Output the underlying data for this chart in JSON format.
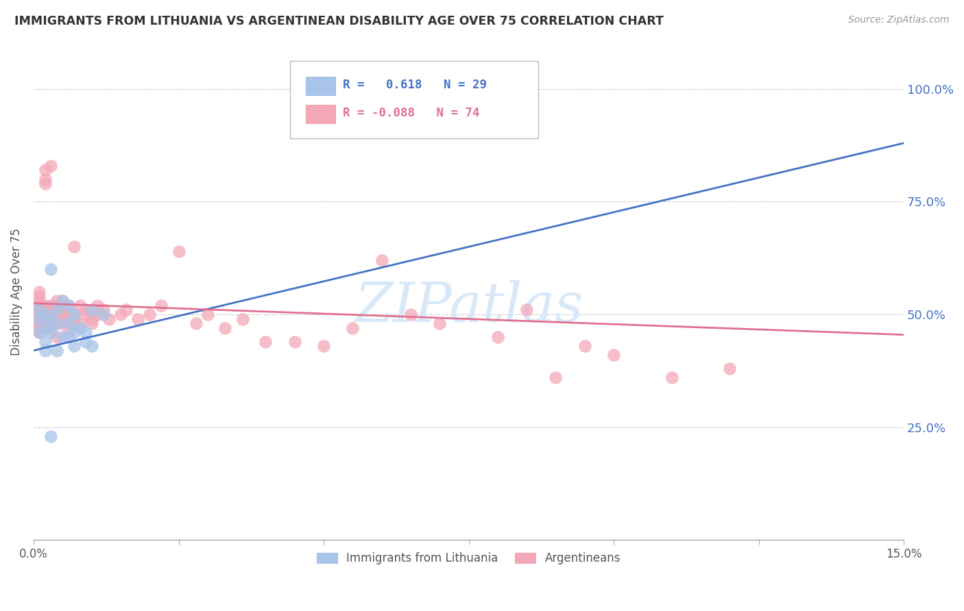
{
  "title": "IMMIGRANTS FROM LITHUANIA VS ARGENTINEAN DISABILITY AGE OVER 75 CORRELATION CHART",
  "source": "Source: ZipAtlas.com",
  "ylabel": "Disability Age Over 75",
  "x_min": 0.0,
  "x_max": 0.15,
  "y_min": 0.0,
  "y_max": 1.1,
  "x_ticks": [
    0.0,
    0.025,
    0.05,
    0.075,
    0.1,
    0.125,
    0.15
  ],
  "x_tick_labels": [
    "0.0%",
    "",
    "",
    "",
    "",
    "",
    "15.0%"
  ],
  "y_ticks": [
    0.0,
    0.25,
    0.5,
    0.75,
    1.0
  ],
  "right_y_ticks": [
    0.25,
    0.5,
    0.75,
    1.0
  ],
  "right_y_tick_labels": [
    "25.0%",
    "50.0%",
    "75.0%",
    "100.0%"
  ],
  "trend_color1": "#4472c4",
  "trend_color2": "#e07090",
  "scatter_color1": "#a8c4e8",
  "scatter_color2": "#f4a8b8",
  "watermark": "ZIPatlas",
  "watermark_color": "#d8e8f8",
  "background_color": "#ffffff",
  "grid_color": "#cccccc",
  "title_color": "#333333",
  "axis_label_color": "#555555",
  "right_axis_color": "#4472c4",
  "lithuania_x": [
    0.001,
    0.001,
    0.001,
    0.002,
    0.002,
    0.002,
    0.002,
    0.003,
    0.003,
    0.003,
    0.004,
    0.004,
    0.004,
    0.005,
    0.005,
    0.006,
    0.006,
    0.006,
    0.007,
    0.007,
    0.007,
    0.008,
    0.009,
    0.009,
    0.01,
    0.01,
    0.012,
    0.003,
    0.065
  ],
  "lithuania_y": [
    0.49,
    0.51,
    0.46,
    0.5,
    0.47,
    0.44,
    0.42,
    0.49,
    0.46,
    0.6,
    0.51,
    0.48,
    0.42,
    0.53,
    0.45,
    0.52,
    0.48,
    0.45,
    0.5,
    0.46,
    0.43,
    0.47,
    0.44,
    0.46,
    0.43,
    0.51,
    0.5,
    0.23,
    1.0
  ],
  "argentina_x": [
    0.001,
    0.001,
    0.001,
    0.001,
    0.001,
    0.001,
    0.001,
    0.001,
    0.001,
    0.001,
    0.002,
    0.002,
    0.002,
    0.002,
    0.002,
    0.002,
    0.002,
    0.002,
    0.003,
    0.003,
    0.003,
    0.003,
    0.003,
    0.003,
    0.004,
    0.004,
    0.004,
    0.004,
    0.004,
    0.004,
    0.005,
    0.005,
    0.005,
    0.005,
    0.006,
    0.006,
    0.006,
    0.007,
    0.007,
    0.007,
    0.008,
    0.008,
    0.009,
    0.009,
    0.01,
    0.01,
    0.011,
    0.011,
    0.012,
    0.013,
    0.015,
    0.016,
    0.018,
    0.02,
    0.022,
    0.025,
    0.028,
    0.03,
    0.033,
    0.036,
    0.04,
    0.045,
    0.05,
    0.055,
    0.06,
    0.065,
    0.07,
    0.08,
    0.085,
    0.09,
    0.095,
    0.1,
    0.11,
    0.12
  ],
  "argentina_y": [
    0.52,
    0.51,
    0.5,
    0.48,
    0.47,
    0.54,
    0.53,
    0.46,
    0.49,
    0.55,
    0.52,
    0.51,
    0.5,
    0.47,
    0.49,
    0.8,
    0.79,
    0.82,
    0.52,
    0.5,
    0.48,
    0.47,
    0.51,
    0.83,
    0.52,
    0.5,
    0.48,
    0.45,
    0.51,
    0.53,
    0.5,
    0.48,
    0.53,
    0.51,
    0.49,
    0.52,
    0.46,
    0.5,
    0.48,
    0.65,
    0.52,
    0.48,
    0.5,
    0.51,
    0.49,
    0.48,
    0.52,
    0.5,
    0.51,
    0.49,
    0.5,
    0.51,
    0.49,
    0.5,
    0.52,
    0.64,
    0.48,
    0.5,
    0.47,
    0.49,
    0.44,
    0.44,
    0.43,
    0.47,
    0.62,
    0.5,
    0.48,
    0.45,
    0.51,
    0.36,
    0.43,
    0.41,
    0.36,
    0.38
  ],
  "lith_trend_x0": 0.0,
  "lith_trend_y0": 0.42,
  "lith_trend_x1": 0.15,
  "lith_trend_y1": 0.88,
  "arg_trend_x0": 0.0,
  "arg_trend_y0": 0.525,
  "arg_trend_x1": 0.15,
  "arg_trend_y1": 0.455
}
